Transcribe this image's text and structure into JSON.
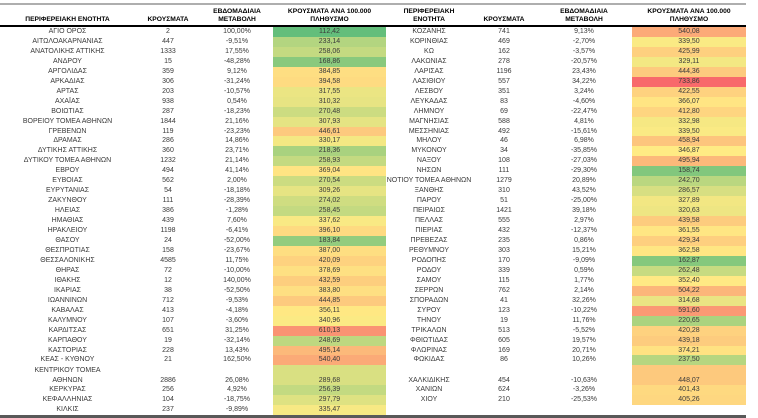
{
  "chart_data": {
    "type": "table",
    "description_of_columns": [
      "region_name",
      "cases",
      "weekly_change",
      "cases_per_100000"
    ],
    "color_scale": {
      "applies_to_column": "cases_per_100000",
      "min_value": 112.42,
      "mid_value": 346.87,
      "max_value": 733.86,
      "min_color": "#63BE7B",
      "mid_color": "#FFEB84",
      "max_color": "#F8696B"
    },
    "text_color": "#3a3a3a",
    "tables": [
      {
        "columns": [
          "ΠΕΡΙΦΕΡΕΙΑΚΗ ΕΝΟΤΗΤΑ",
          "ΚΡΟΥΣΜΑΤΑ",
          "ΕΒΔΟΜΑΔΙΑΙΑ\nΜΕΤΑΒΟΛΗ",
          "ΚΡΟΥΣΜΑΤΑ ΑΝΑ 100.000\nΠΛΗΘΥΣΜΟ"
        ],
        "tall_row": 34,
        "rows": [
          [
            "ΑΓΙΟ ΟΡΟΣ",
            "2",
            "100,00%",
            "112,42"
          ],
          [
            "ΑΙΤΩΛΟΑΚΑΡΝΑΝΙΑΣ",
            "447",
            "-9,51%",
            "233,14"
          ],
          [
            "ΑΝΑΤΟΛΙΚΗΣ ΑΤΤΙΚΗΣ",
            "1333",
            "17,55%",
            "258,06"
          ],
          [
            "ΑΝΔΡΟΥ",
            "15",
            "-48,28%",
            "168,86"
          ],
          [
            "ΑΡΓΟΛΙΔΑΣ",
            "359",
            "9,12%",
            "384,85"
          ],
          [
            "ΑΡΚΑΔΙΑΣ",
            "306",
            "-31,24%",
            "394,58"
          ],
          [
            "ΑΡΤΑΣ",
            "203",
            "-10,57%",
            "317,55"
          ],
          [
            "ΑΧΑΪΑΣ",
            "938",
            "0,54%",
            "310,32"
          ],
          [
            "ΒΟΙΩΤΙΑΣ",
            "287",
            "-18,23%",
            "270,48"
          ],
          [
            "ΒΟΡΕΙΟΥ ΤΟΜΕΑ ΑΘΗΝΩΝ",
            "1844",
            "21,16%",
            "307,93"
          ],
          [
            "ΓΡΕΒΕΝΩΝ",
            "119",
            "-23,23%",
            "446,61"
          ],
          [
            "ΔΡΑΜΑΣ",
            "286",
            "14,86%",
            "330,17"
          ],
          [
            "ΔΥΤΙΚΗΣ ΑΤΤΙΚΗΣ",
            "360",
            "23,71%",
            "218,36"
          ],
          [
            "ΔΥΤΙΚΟΥ ΤΟΜΕΑ ΑΘΗΝΩΝ",
            "1232",
            "21,14%",
            "258,93"
          ],
          [
            "ΕΒΡΟΥ",
            "494",
            "41,14%",
            "369,04"
          ],
          [
            "ΕΥΒΟΙΑΣ",
            "562",
            "2,00%",
            "270,54"
          ],
          [
            "ΕΥΡΥΤΑΝΙΑΣ",
            "54",
            "-18,18%",
            "309,26"
          ],
          [
            "ΖΑΚΥΝΘΟΥ",
            "111",
            "-28,39%",
            "274,02"
          ],
          [
            "ΗΛΕΙΑΣ",
            "386",
            "-1,28%",
            "258,45"
          ],
          [
            "ΗΜΑΘΙΑΣ",
            "439",
            "7,60%",
            "337,62"
          ],
          [
            "ΗΡΑΚΛΕΙΟΥ",
            "1198",
            "-6,41%",
            "396,10"
          ],
          [
            "ΘΑΣΟΥ",
            "24",
            "-52,00%",
            "183,84"
          ],
          [
            "ΘΕΣΠΡΩΤΙΑΣ",
            "158",
            "-23,67%",
            "387,00"
          ],
          [
            "ΘΕΣΣΑΛΟΝΙΚΗΣ",
            "4585",
            "11,75%",
            "420,09"
          ],
          [
            "ΘΗΡΑΣ",
            "72",
            "-10,00%",
            "378,69"
          ],
          [
            "ΙΘΑΚΗΣ",
            "12",
            "140,00%",
            "432,59"
          ],
          [
            "ΙΚΑΡΙΑΣ",
            "38",
            "-52,50%",
            "383,80"
          ],
          [
            "ΙΩΑΝΝΙΝΩΝ",
            "712",
            "-9,53%",
            "444,85"
          ],
          [
            "ΚΑΒΑΛΑΣ",
            "413",
            "-4,18%",
            "356,11"
          ],
          [
            "ΚΑΛΥΜΝΟΥ",
            "107",
            "-3,60%",
            "340,96"
          ],
          [
            "ΚΑΡΔΙΤΣΑΣ",
            "651",
            "31,25%",
            "610,13"
          ],
          [
            "ΚΑΡΠΑΘΟΥ",
            "19",
            "-32,14%",
            "248,69"
          ],
          [
            "ΚΑΣΤΟΡΙΑΣ",
            "228",
            "13,43%",
            "495,14"
          ],
          [
            "ΚΕΑΣ - ΚΥΘΝΟΥ",
            "21",
            "162,50%",
            "540,40"
          ],
          [
            "ΚΕΝΤΡΙΚΟΥ ΤΟΜΕΑ\nΑΘΗΝΩΝ",
            "2886",
            "26,08%",
            "289,68"
          ],
          [
            "ΚΕΡΚΥΡΑΣ",
            "256",
            "4,92%",
            "256,39"
          ],
          [
            "ΚΕΦΑΛΛΗΝΙΑΣ",
            "104",
            "-18,75%",
            "297,79"
          ],
          [
            "ΚΙΛΚΙΣ",
            "237",
            "-9,89%",
            "335,47"
          ]
        ]
      },
      {
        "columns": [
          "ΠΕΡΙΦΕΡΕΙΑΚΗ\nΕΝΟΤΗΤΑ",
          "ΚΡΟΥΣΜΑΤΑ",
          "ΕΒΔΟΜΑΔΙΑΙΑ\nΜΕΤΑΒΟΛΗ",
          "ΚΡΟΥΣΜΑΤΑ ΑΝΑ 100.000\nΠΛΗΘΥΣΜΟ"
        ],
        "tall_row": 34,
        "rows": [
          [
            "ΚΟΖΑΝΗΣ",
            "741",
            "9,13%",
            "540,08"
          ],
          [
            "ΚΟΡΙΝΘΙΑΣ",
            "469",
            "-2,70%",
            "339,50"
          ],
          [
            "ΚΩ",
            "162",
            "-3,57%",
            "425,99"
          ],
          [
            "ΛΑΚΩΝΙΑΣ",
            "278",
            "-20,57%",
            "329,11"
          ],
          [
            "ΛΑΡΙΣΑΣ",
            "1196",
            "23,43%",
            "444,36"
          ],
          [
            "ΛΑΣΙΘΙΟΥ",
            "557",
            "34,22%",
            "733,86"
          ],
          [
            "ΛΕΣΒΟΥ",
            "351",
            "3,24%",
            "422,55"
          ],
          [
            "ΛΕΥΚΑΔΑΣ",
            "83",
            "-4,60%",
            "366,07"
          ],
          [
            "ΛΗΜΝΟΥ",
            "69",
            "-22,47%",
            "412,80"
          ],
          [
            "ΜΑΓΝΗΣΙΑΣ",
            "588",
            "4,81%",
            "332,98"
          ],
          [
            "ΜΕΣΣΗΝΙΑΣ",
            "492",
            "-15,61%",
            "339,50"
          ],
          [
            "ΜΗΛΟΥ",
            "46",
            "6,98%",
            "458,94"
          ],
          [
            "ΜΥΚΟΝΟΥ",
            "34",
            "-35,85%",
            "346,87"
          ],
          [
            "ΝΑΞΟΥ",
            "108",
            "-27,03%",
            "495,94"
          ],
          [
            "ΝΗΣΩΝ",
            "111",
            "-29,30%",
            "158,74"
          ],
          [
            "ΝΟΤΙΟΥ ΤΟΜΕΑ ΑΘΗΝΩΝ",
            "1279",
            "20,89%",
            "242,70"
          ],
          [
            "ΞΑΝΘΗΣ",
            "310",
            "43,52%",
            "286,57"
          ],
          [
            "ΠΑΡΟΥ",
            "51",
            "-25,00%",
            "327,89"
          ],
          [
            "ΠΕΙΡΑΙΩΣ",
            "1421",
            "39,18%",
            "320,63"
          ],
          [
            "ΠΕΛΛΑΣ",
            "555",
            "2,97%",
            "439,58"
          ],
          [
            "ΠΙΕΡΙΑΣ",
            "432",
            "-12,37%",
            "361,55"
          ],
          [
            "ΠΡΕΒΕΖΑΣ",
            "235",
            "0,86%",
            "429,34"
          ],
          [
            "ΡΕΘΥΜΝΟΥ",
            "303",
            "15,21%",
            "362,58"
          ],
          [
            "ΡΟΔΟΠΗΣ",
            "170",
            "-9,09%",
            "162,87"
          ],
          [
            "ΡΟΔΟΥ",
            "339",
            "0,59%",
            "262,48"
          ],
          [
            "ΣΑΜΟΥ",
            "115",
            "1,77%",
            "352,40"
          ],
          [
            "ΣΕΡΡΩΝ",
            "762",
            "2,14%",
            "504,22"
          ],
          [
            "ΣΠΟΡΑΔΩΝ",
            "41",
            "32,26%",
            "314,68"
          ],
          [
            "ΣΥΡΟΥ",
            "123",
            "-10,22%",
            "591,60"
          ],
          [
            "ΤΗΝΟΥ",
            "19",
            "11,76%",
            "220,65"
          ],
          [
            "ΤΡΙΚΑΛΩΝ",
            "513",
            "-5,52%",
            "420,28"
          ],
          [
            "ΦΘΙΩΤΙΔΑΣ",
            "605",
            "19,57%",
            "439,18"
          ],
          [
            "ΦΛΩΡΙΝΑΣ",
            "169",
            "20,71%",
            "374,21"
          ],
          [
            "ΦΩΚΙΔΑΣ",
            "86",
            "10,26%",
            "237,50"
          ],
          [
            "ΧΑΛΚΙΔΙΚΗΣ",
            "454",
            "-10,63%",
            "448,07"
          ],
          [
            "ΧΑΝΙΩΝ",
            "624",
            "-3,26%",
            "401,43"
          ],
          [
            "ΧΙΟΥ",
            "210",
            "-25,53%",
            "405,26"
          ]
        ]
      }
    ]
  }
}
